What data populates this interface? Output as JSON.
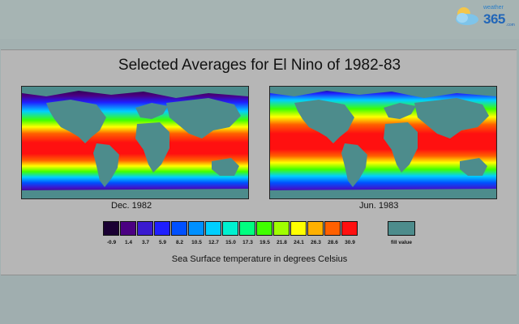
{
  "brand": {
    "small": "weather",
    "big": "365",
    "com": ".com"
  },
  "title": "Selected Averages for El Nino of 1982-83",
  "maps": [
    {
      "caption": "Dec. 1982"
    },
    {
      "caption": "Jun. 1983"
    }
  ],
  "legend": {
    "labels": [
      "-0.9",
      "1.4",
      "3.7",
      "5.9",
      "8.2",
      "10.5",
      "12.7",
      "15.0",
      "17.3",
      "19.5",
      "21.8",
      "24.1",
      "26.3",
      "28.6",
      "30.9"
    ],
    "colors": [
      "#1a0033",
      "#4b0082",
      "#3a1ad0",
      "#1f1fff",
      "#0050ff",
      "#0090ff",
      "#00cfff",
      "#00f0d0",
      "#00ff80",
      "#40ff00",
      "#a0ff00",
      "#ffff00",
      "#ffb000",
      "#ff6000",
      "#ff1010"
    ],
    "fill_label": "fill value",
    "fill_color": "#4d8c8c"
  },
  "subtitle": "Sea Surface temperature in degrees Celsius"
}
